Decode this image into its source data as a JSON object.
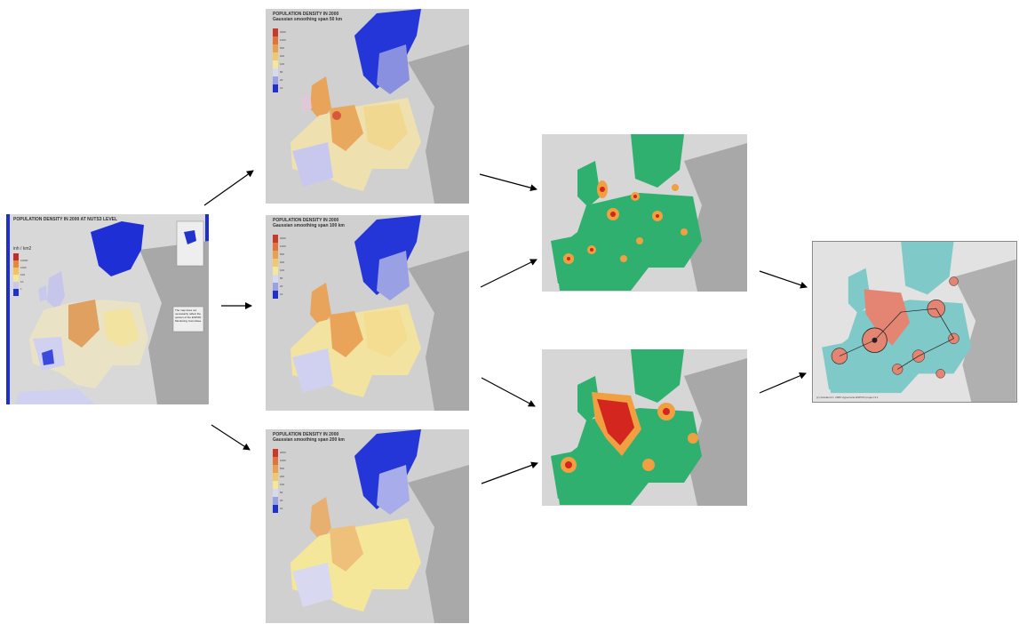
{
  "source_map": {
    "title": "POPULATION DENSITY IN 2000 AT NUTS3 LEVEL",
    "legend_title": "inh / km2",
    "legend_values": [
      "10000",
      "1000",
      "100",
      "10",
      "1"
    ],
    "note": "The map does not necessarily reflect the opinion of the ESPON Monitoring Committee"
  },
  "smoothed_maps": [
    {
      "title_line1": "POPULATION DENSITY IN 2000",
      "title_line2": "Gaussian smoothing span 50 km"
    },
    {
      "title_line1": "POPULATION DENSITY IN 2000",
      "title_line2": "Gaussian smoothing span 100 km"
    },
    {
      "title_line1": "POPULATION DENSITY IN 2000",
      "title_line2": "Gaussian smoothing span 200 km"
    }
  ],
  "smoothed_legend_values": [
    "2000",
    "1000",
    "500",
    "200",
    "100",
    "50",
    "20",
    "10"
  ],
  "final_map": {
    "credit": "(c) Grasland C. 2005  Hypercarte  ESPON project 3.1"
  },
  "colors": {
    "sea": "#cfcfcf",
    "land_outside": "#a9a9a9",
    "density_blue": "#1f2fd6",
    "density_light": "#c8c8ee",
    "density_yellow": "#f5e79a",
    "density_orange": "#e8a45a",
    "density_red": "#c83a2a",
    "cluster_green": "#2fb06f",
    "cluster_orange": "#f0a040",
    "cluster_red": "#d3261e",
    "final_teal": "#7fc9c8",
    "final_salmon": "#e48472",
    "arrow": "#000000"
  }
}
